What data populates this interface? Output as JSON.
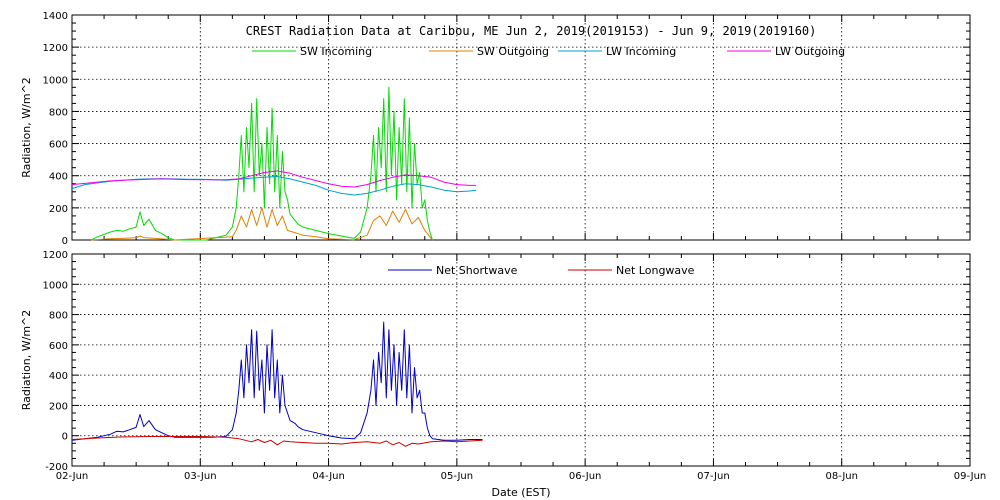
{
  "chart_data": [
    {
      "type": "line",
      "title": "CREST Radiation Data at Caribou, ME   Jun  2, 2019(2019153) - Jun  9, 2019(2019160)",
      "ylabel": "Radiation, W/m^2",
      "xlabel": "",
      "ylim": [
        0,
        1400
      ],
      "yticks": [
        0,
        200,
        400,
        600,
        800,
        1000,
        1200,
        1400
      ],
      "xlim_days": [
        0,
        7
      ],
      "grid": true,
      "legend": "top",
      "series": [
        {
          "name": "SW Incoming",
          "color": "#00dd00",
          "x": [
            0.15,
            0.2,
            0.25,
            0.3,
            0.35,
            0.4,
            0.45,
            0.5,
            0.53,
            0.56,
            0.6,
            0.65,
            0.7,
            0.75,
            0.8,
            1.05,
            1.1,
            1.2,
            1.25,
            1.28,
            1.3,
            1.32,
            1.34,
            1.36,
            1.38,
            1.4,
            1.42,
            1.44,
            1.46,
            1.48,
            1.5,
            1.52,
            1.54,
            1.56,
            1.58,
            1.6,
            1.62,
            1.64,
            1.66,
            1.68,
            1.7,
            1.72,
            1.74,
            1.76,
            1.8,
            1.9,
            2.0,
            2.1,
            2.2,
            2.25,
            2.3,
            2.33,
            2.35,
            2.37,
            2.39,
            2.41,
            2.43,
            2.45,
            2.47,
            2.49,
            2.51,
            2.53,
            2.55,
            2.57,
            2.59,
            2.61,
            2.63,
            2.65,
            2.67,
            2.69,
            2.71,
            2.73,
            2.75,
            2.77,
            2.79,
            2.81
          ],
          "y": [
            0,
            20,
            35,
            50,
            60,
            55,
            70,
            80,
            175,
            90,
            130,
            60,
            40,
            15,
            0,
            0,
            10,
            30,
            80,
            200,
            400,
            650,
            300,
            700,
            450,
            850,
            300,
            880,
            400,
            600,
            200,
            700,
            350,
            820,
            300,
            650,
            200,
            550,
            300,
            250,
            160,
            140,
            120,
            100,
            80,
            60,
            40,
            25,
            10,
            50,
            200,
            400,
            650,
            300,
            700,
            450,
            880,
            300,
            950,
            400,
            800,
            250,
            700,
            350,
            880,
            300,
            760,
            200,
            600,
            350,
            420,
            200,
            250,
            120,
            50,
            0
          ]
        },
        {
          "name": "SW Outgoing",
          "color": "#e08000",
          "x": [
            0.15,
            0.3,
            0.45,
            0.5,
            0.53,
            0.56,
            0.65,
            0.75,
            0.8,
            1.25,
            1.28,
            1.32,
            1.36,
            1.4,
            1.44,
            1.48,
            1.52,
            1.56,
            1.6,
            1.64,
            1.68,
            1.72,
            1.8,
            1.9,
            2.0,
            2.2,
            2.3,
            2.35,
            2.4,
            2.45,
            2.5,
            2.55,
            2.6,
            2.65,
            2.7,
            2.75,
            2.81
          ],
          "y": [
            0,
            8,
            12,
            15,
            25,
            15,
            10,
            4,
            0,
            20,
            60,
            150,
            80,
            190,
            90,
            200,
            80,
            190,
            90,
            150,
            60,
            50,
            30,
            20,
            8,
            2,
            30,
            120,
            150,
            90,
            180,
            110,
            190,
            100,
            140,
            60,
            0
          ]
        },
        {
          "name": "LW Incoming",
          "color": "#00a0d0",
          "x": [
            0,
            0.1,
            0.2,
            0.3,
            0.4,
            0.5,
            0.6,
            0.7,
            0.8,
            0.9,
            1.0,
            1.1,
            1.2,
            1.3,
            1.4,
            1.5,
            1.6,
            1.7,
            1.8,
            1.9,
            2.0,
            2.1,
            2.2,
            2.3,
            2.4,
            2.5,
            2.6,
            2.7,
            2.8,
            2.9,
            3.0,
            3.1,
            3.15
          ],
          "y": [
            320,
            345,
            355,
            365,
            372,
            378,
            380,
            382,
            380,
            378,
            378,
            375,
            372,
            378,
            385,
            390,
            395,
            380,
            360,
            340,
            310,
            290,
            280,
            290,
            310,
            335,
            350,
            345,
            330,
            310,
            300,
            305,
            310
          ]
        },
        {
          "name": "LW Outgoing",
          "color": "#ee00ee",
          "x": [
            0,
            0.1,
            0.2,
            0.3,
            0.4,
            0.5,
            0.6,
            0.7,
            0.8,
            0.9,
            1.0,
            1.1,
            1.2,
            1.3,
            1.4,
            1.5,
            1.6,
            1.7,
            1.8,
            1.9,
            2.0,
            2.1,
            2.2,
            2.3,
            2.4,
            2.5,
            2.6,
            2.7,
            2.8,
            2.9,
            3.0,
            3.1,
            3.15
          ],
          "y": [
            345,
            352,
            360,
            368,
            372,
            375,
            378,
            380,
            378,
            376,
            376,
            375,
            375,
            380,
            400,
            420,
            430,
            415,
            390,
            370,
            350,
            335,
            330,
            345,
            370,
            390,
            405,
            400,
            390,
            360,
            345,
            340,
            340
          ]
        }
      ]
    },
    {
      "type": "line",
      "title": "",
      "ylabel": "Radiation, W/m^2",
      "xlabel": "Date (EST)",
      "ylim": [
        -200,
        1200
      ],
      "yticks": [
        -200,
        0,
        200,
        400,
        600,
        800,
        1000,
        1200
      ],
      "xlim_days": [
        0,
        7
      ],
      "categories": [
        "02-Jun",
        "03-Jun",
        "04-Jun",
        "05-Jun",
        "06-Jun",
        "07-Jun",
        "08-Jun",
        "09-Jun"
      ],
      "grid": true,
      "legend": "top",
      "series": [
        {
          "name": "Net Shortwave",
          "color": "#0000cc",
          "x": [
            0,
            0.1,
            0.2,
            0.3,
            0.35,
            0.4,
            0.45,
            0.5,
            0.53,
            0.56,
            0.6,
            0.65,
            0.7,
            0.75,
            0.8,
            1.0,
            1.1,
            1.2,
            1.25,
            1.28,
            1.3,
            1.32,
            1.34,
            1.36,
            1.38,
            1.4,
            1.42,
            1.44,
            1.46,
            1.48,
            1.5,
            1.52,
            1.54,
            1.56,
            1.58,
            1.6,
            1.62,
            1.64,
            1.66,
            1.68,
            1.7,
            1.72,
            1.74,
            1.76,
            1.8,
            1.9,
            2.0,
            2.1,
            2.2,
            2.25,
            2.3,
            2.33,
            2.35,
            2.37,
            2.39,
            2.41,
            2.43,
            2.45,
            2.47,
            2.49,
            2.51,
            2.53,
            2.55,
            2.57,
            2.59,
            2.61,
            2.63,
            2.65,
            2.67,
            2.69,
            2.71,
            2.73,
            2.75,
            2.77,
            2.79,
            2.81,
            2.9,
            3.0,
            3.1,
            3.2
          ],
          "y": [
            -30,
            -20,
            -10,
            10,
            30,
            25,
            40,
            55,
            140,
            60,
            100,
            40,
            20,
            0,
            -10,
            -10,
            -10,
            -5,
            40,
            150,
            300,
            500,
            250,
            600,
            350,
            700,
            250,
            690,
            300,
            500,
            150,
            600,
            300,
            700,
            250,
            500,
            150,
            400,
            200,
            150,
            100,
            90,
            80,
            60,
            40,
            20,
            0,
            -15,
            -20,
            20,
            150,
            300,
            500,
            200,
            550,
            350,
            750,
            250,
            700,
            300,
            600,
            200,
            550,
            300,
            700,
            250,
            600,
            150,
            450,
            250,
            300,
            150,
            150,
            50,
            0,
            -20,
            -30,
            -30,
            -25,
            -25
          ]
        },
        {
          "name": "Net Longwave",
          "color": "#cc0000",
          "x": [
            0,
            0.2,
            0.4,
            0.6,
            0.8,
            1.0,
            1.2,
            1.3,
            1.4,
            1.45,
            1.5,
            1.55,
            1.6,
            1.65,
            1.7,
            1.8,
            1.9,
            2.0,
            2.1,
            2.2,
            2.3,
            2.4,
            2.45,
            2.5,
            2.55,
            2.6,
            2.65,
            2.7,
            2.8,
            2.9,
            3.0,
            3.1,
            3.2
          ],
          "y": [
            -25,
            -15,
            -8,
            -5,
            -5,
            -5,
            -10,
            -20,
            -40,
            -25,
            -45,
            -30,
            -60,
            -35,
            -40,
            -45,
            -50,
            -50,
            -55,
            -45,
            -40,
            -50,
            -35,
            -60,
            -45,
            -70,
            -50,
            -55,
            -40,
            -35,
            -40,
            -35,
            -30
          ]
        }
      ]
    }
  ]
}
